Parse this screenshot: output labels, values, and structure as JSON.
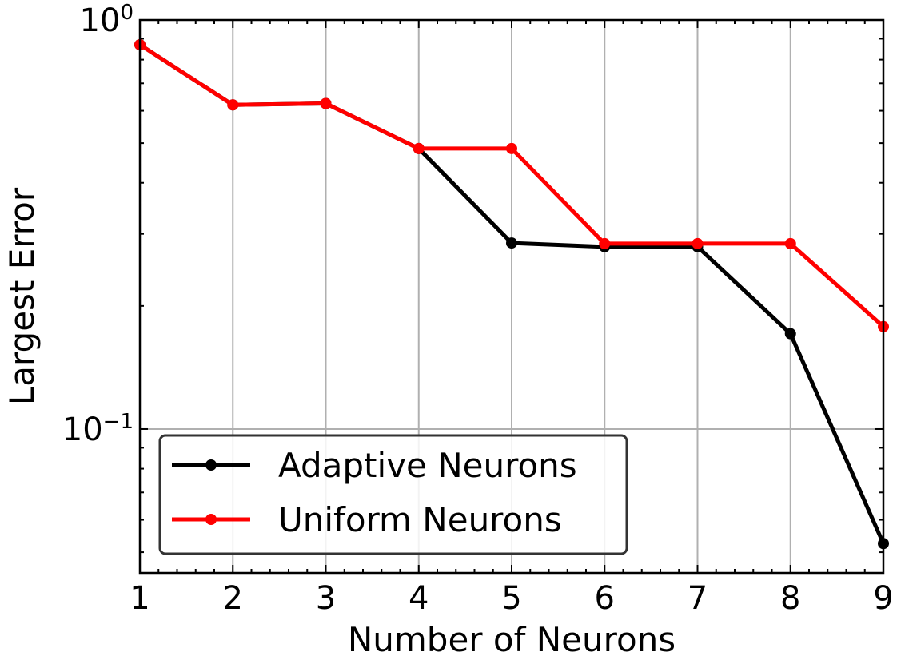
{
  "chart_data": {
    "type": "line",
    "xlabel": "Number of Neurons",
    "ylabel": "Largest Error",
    "xlim": [
      1,
      9
    ],
    "ylim": [
      0.0445,
      1.0
    ],
    "yscale": "log",
    "grid": true,
    "legend_position": "lower-left",
    "x": [
      1,
      2,
      3,
      4,
      5,
      6,
      7,
      8,
      9
    ],
    "x_ticks": [
      "1",
      "2",
      "3",
      "4",
      "5",
      "6",
      "7",
      "8",
      "9"
    ],
    "y_ticks": [
      {
        "value": 1.0,
        "base": "10",
        "exp": "0"
      },
      {
        "value": 0.1,
        "base": "10",
        "exp": "−1"
      }
    ],
    "series": [
      {
        "name": "Adaptive Neurons",
        "color": "#000000",
        "values": [
          0.87,
          0.62,
          0.625,
          0.485,
          0.285,
          0.279,
          0.279,
          0.171,
          0.0525
        ]
      },
      {
        "name": "Uniform Neurons",
        "color": "#ff0000",
        "values": [
          0.87,
          0.62,
          0.625,
          0.485,
          0.485,
          0.284,
          0.284,
          0.284,
          0.178
        ]
      }
    ]
  }
}
